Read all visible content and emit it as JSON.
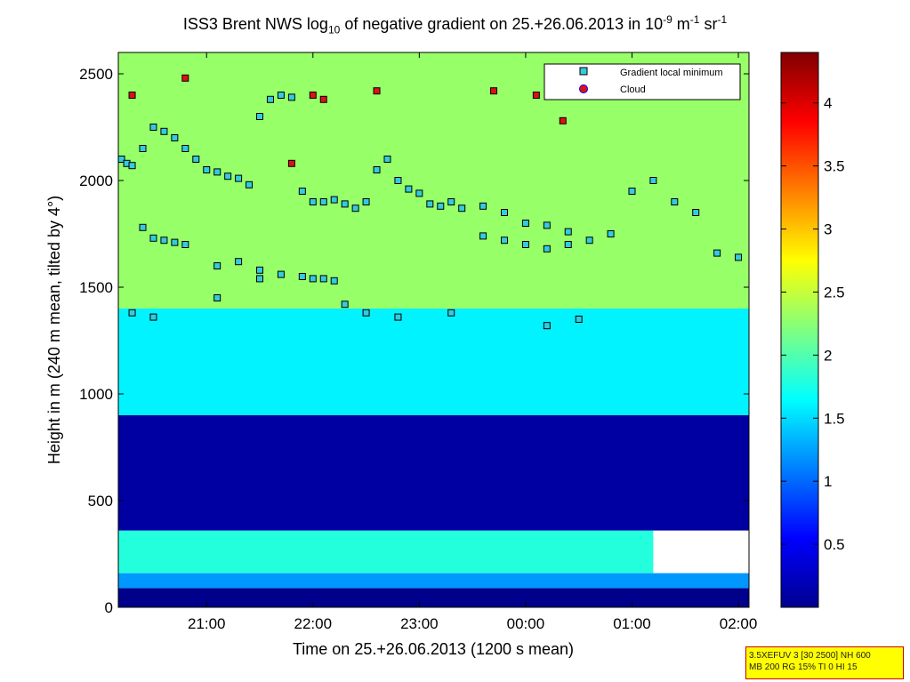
{
  "title": {
    "prefix": "ISS3 Brent NWS log",
    "log_base": "10",
    "middle": " of negative gradient on 25.+26.06.2013 in 10",
    "exp1": "-9",
    "unit1": " m",
    "exp2": "-1",
    "unit2": " sr",
    "exp3": "-1"
  },
  "info_box": {
    "line1": "3.5XEFUV 3 [30 2500] NH 600",
    "line2": "MB 200 RG 15% TI 0 HI 15"
  },
  "chart_data": {
    "type": "heatmap",
    "xlabel": "Time on 25.+26.06.2013 (1200 s mean)",
    "ylabel": "Height in m (240 m mean, tilted by 4°)",
    "x_range_hours": [
      20.17,
      26.1
    ],
    "x_ticks": [
      "21:00",
      "22:00",
      "23:00",
      "00:00",
      "01:00",
      "02:00"
    ],
    "x_tick_hours": [
      21,
      22,
      23,
      24,
      25,
      26
    ],
    "ylim": [
      0,
      2600
    ],
    "y_ticks": [
      0,
      500,
      1000,
      1500,
      2000,
      2500
    ],
    "colorbar": {
      "range": [
        0,
        4.4
      ],
      "ticks": [
        0.5,
        1,
        1.5,
        2,
        2.5,
        3,
        3.5,
        4
      ],
      "colormap": "jet"
    },
    "legend": {
      "placement": "top-right",
      "entries": [
        {
          "label": "Gradient local minimum",
          "color": "#33ccdd",
          "marker": "square"
        },
        {
          "label": "Cloud",
          "color": "#dd1111",
          "marker": "circle"
        }
      ]
    },
    "layers": [
      {
        "name": "surface",
        "x_start": 20.17,
        "x_end": 26.1,
        "y_low": 0,
        "y_high": 90,
        "value": 0.05
      },
      {
        "name": "near-surface band",
        "x_start": 20.17,
        "x_end": 26.1,
        "y_low": 90,
        "y_high": 160,
        "value": 1.2
      },
      {
        "name": "low band",
        "x_start": 20.17,
        "x_end": 25.2,
        "y_low": 160,
        "y_high": 360,
        "value": 1.8
      },
      {
        "name": "dark layer",
        "x_start": 20.17,
        "x_end": 26.1,
        "y_low": 360,
        "y_high": 900,
        "value": 0.15
      },
      {
        "name": "mid band",
        "x_start": 20.17,
        "x_end": 26.1,
        "y_low": 900,
        "y_high": 1400,
        "value": 1.6
      },
      {
        "name": "upper band",
        "x_start": 20.17,
        "x_end": 26.1,
        "y_low": 1400,
        "y_high": 2600,
        "value": 2.3
      }
    ],
    "series": [
      {
        "name": "Gradient local minimum",
        "x": [
          20.2,
          20.25,
          20.3,
          20.4,
          20.5,
          20.6,
          20.7,
          20.8,
          20.9,
          21.0,
          21.1,
          21.2,
          21.3,
          21.4,
          21.5,
          21.6,
          21.7,
          21.8,
          21.9,
          22.0,
          22.1,
          22.2,
          22.3,
          22.4,
          22.5,
          22.6,
          22.7,
          22.8,
          22.9,
          23.0,
          23.1,
          23.2,
          23.3,
          23.4,
          23.6,
          23.8,
          24.0,
          24.2,
          24.4,
          24.6,
          24.8,
          25.0,
          25.2,
          25.4,
          25.6,
          25.8,
          26.0,
          20.4,
          20.5,
          20.6,
          20.7,
          20.8,
          21.1,
          21.3,
          21.5,
          21.7,
          21.9,
          22.0,
          22.1,
          22.2,
          23.6,
          23.8,
          24.0,
          24.2,
          24.4,
          20.3,
          20.5,
          21.1,
          21.5,
          22.3,
          22.5,
          22.8,
          23.3,
          24.2,
          24.5
        ],
        "y": [
          2100,
          2080,
          2070,
          2150,
          2250,
          2230,
          2200,
          2150,
          2100,
          2050,
          2040,
          2020,
          2010,
          1980,
          2300,
          2380,
          2400,
          2390,
          1950,
          1900,
          1900,
          1910,
          1890,
          1870,
          1900,
          2050,
          2100,
          2000,
          1960,
          1940,
          1890,
          1880,
          1900,
          1870,
          1880,
          1850,
          1800,
          1790,
          1760,
          1720,
          1750,
          1950,
          2000,
          1900,
          1850,
          1660,
          1640,
          1780,
          1730,
          1720,
          1710,
          1700,
          1600,
          1620,
          1580,
          1560,
          1550,
          1540,
          1540,
          1530,
          1740,
          1720,
          1700,
          1680,
          1700,
          1380,
          1360,
          1450,
          1540,
          1420,
          1380,
          1360,
          1380,
          1320,
          1350
        ]
      },
      {
        "name": "Cloud",
        "x": [
          20.3,
          20.8,
          21.8,
          22.0,
          22.1,
          22.6,
          23.7,
          24.1,
          24.35
        ],
        "y": [
          2400,
          2480,
          2080,
          2400,
          2380,
          2420,
          2420,
          2400,
          2280
        ]
      }
    ]
  },
  "colors": {
    "background": "#ffffff",
    "info_box_fill": "#ffff00",
    "info_box_border": "#cc0000"
  }
}
